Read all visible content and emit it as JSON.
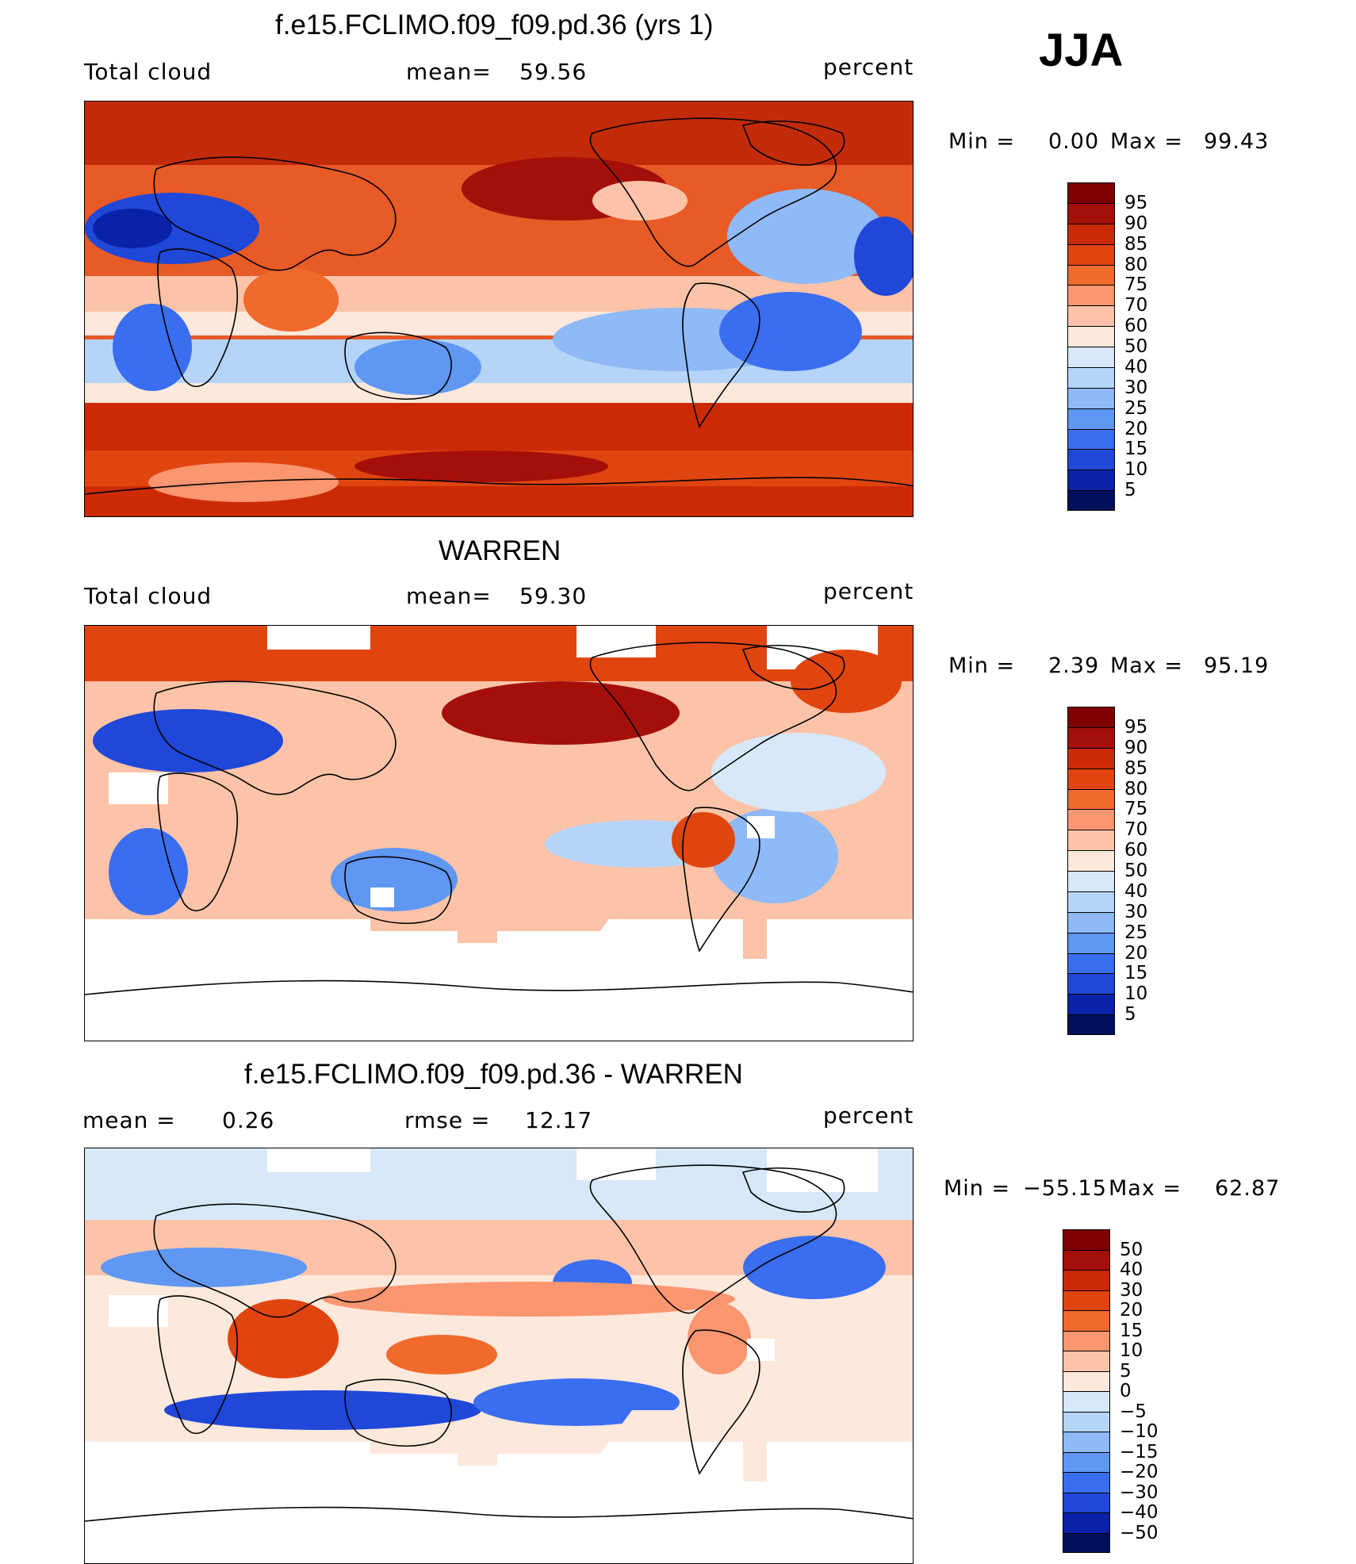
{
  "season": "JJA",
  "panels": [
    {
      "title": "f.e15.FCLIMO.f09_f09.pd.36 (yrs 1)",
      "left_label": "Total cloud",
      "mid_label": "mean=",
      "mid_value": "59.56",
      "units": "percent",
      "min_label": "Min =",
      "min_value": "0.00",
      "max_label": "Max =",
      "max_value": "99.43",
      "colorbar": {
        "labels": [
          "95",
          "90",
          "85",
          "80",
          "75",
          "70",
          "60",
          "50",
          "40",
          "30",
          "25",
          "20",
          "15",
          "10",
          "5"
        ],
        "colors": [
          "#7f0000",
          "#a50f0a",
          "#cc2a06",
          "#e0450f",
          "#f06a2c",
          "#fa9670",
          "#fcc3a8",
          "#fde8dc",
          "#d6e8f9",
          "#b6d4f8",
          "#8fb9f7",
          "#5f97f3",
          "#3a6ef0",
          "#1f47d8",
          "#0a22a8",
          "#00105a"
        ]
      }
    },
    {
      "title": "WARREN",
      "left_label": "Total cloud",
      "mid_label": "mean=",
      "mid_value": "59.30",
      "units": "percent",
      "min_label": "Min =",
      "min_value": "2.39",
      "max_label": "Max =",
      "max_value": "95.19",
      "colorbar": {
        "labels": [
          "95",
          "90",
          "85",
          "80",
          "75",
          "70",
          "60",
          "50",
          "40",
          "30",
          "25",
          "20",
          "15",
          "10",
          "5"
        ],
        "colors": [
          "#7f0000",
          "#a50f0a",
          "#cc2a06",
          "#e0450f",
          "#f06a2c",
          "#fa9670",
          "#fcc3a8",
          "#fde8dc",
          "#d6e8f9",
          "#b6d4f8",
          "#8fb9f7",
          "#5f97f3",
          "#3a6ef0",
          "#1f47d8",
          "#0a22a8",
          "#00105a"
        ]
      }
    },
    {
      "title": "f.e15.FCLIMO.f09_f09.pd.36 - WARREN",
      "left_label": "mean =",
      "left_value": "0.26",
      "mid_label": "rmse =",
      "mid_value": "12.17",
      "units": "percent",
      "min_label": "Min =",
      "min_value": "−55.15",
      "max_label": "Max =",
      "max_value": "62.87",
      "colorbar": {
        "labels": [
          "50",
          "40",
          "30",
          "20",
          "15",
          "10",
          "5",
          "0",
          "−5",
          "−10",
          "−15",
          "−20",
          "−30",
          "−40",
          "−50"
        ],
        "colors": [
          "#7f0000",
          "#a50f0a",
          "#cc2a06",
          "#e0450f",
          "#f06a2c",
          "#fa9670",
          "#fcc3a8",
          "#fde8dc",
          "#d6e8f9",
          "#b6d4f8",
          "#8fb9f7",
          "#5f97f3",
          "#3a6ef0",
          "#1f47d8",
          "#0a22a8",
          "#00105a"
        ]
      }
    }
  ]
}
